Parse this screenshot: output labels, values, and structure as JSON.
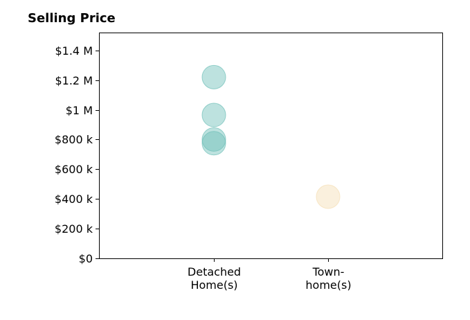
{
  "chart_data": {
    "type": "scatter",
    "title": "Selling Price",
    "categories": [
      "Detached Home(s)",
      "Town-home(s)"
    ],
    "category_label_lines": [
      [
        "Detached",
        "Home(s)"
      ],
      [
        "Town-",
        "home(s)"
      ]
    ],
    "ylim": [
      0,
      1520000
    ],
    "yticks": [
      0,
      200000,
      400000,
      600000,
      800000,
      1000000,
      1200000,
      1400000
    ],
    "ytick_labels": [
      "$0",
      "$200 k",
      "$400 k",
      "$600 k",
      "$800 k",
      "$1 M",
      "$1.2 M",
      "$1.4 M"
    ],
    "grid": false,
    "points": [
      {
        "category": "Detached Home(s)",
        "value": 1220000
      },
      {
        "category": "Detached Home(s)",
        "value": 965000
      },
      {
        "category": "Detached Home(s)",
        "value": 800000
      },
      {
        "category": "Detached Home(s)",
        "value": 775000
      },
      {
        "category": "Town-home(s)",
        "value": 415000
      }
    ],
    "colors": {
      "Detached Home(s)": "#6dbfb8",
      "Town-home(s)": "#f5deb3"
    }
  }
}
